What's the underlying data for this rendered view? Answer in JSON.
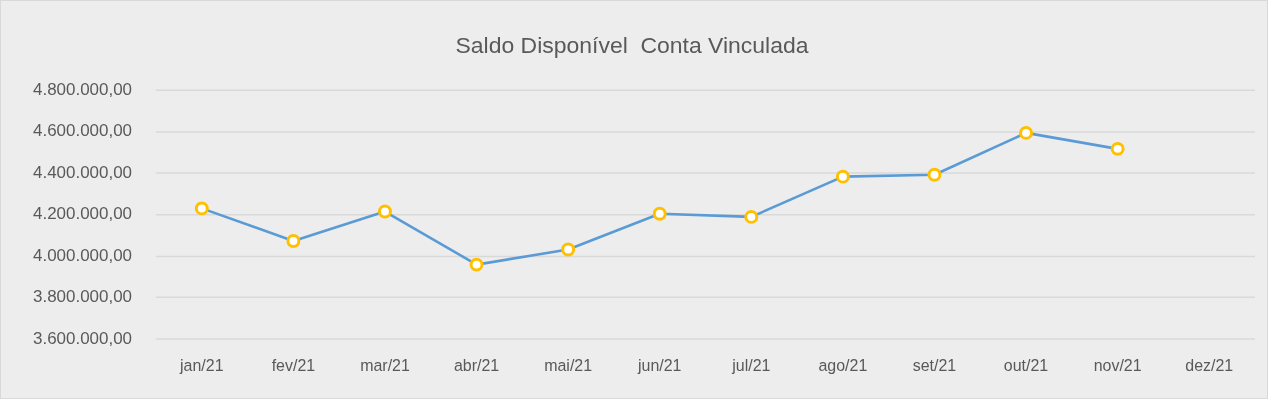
{
  "chart_data": {
    "type": "line",
    "title": "Saldo Disponível  Conta Vinculada",
    "categories": [
      "jan/21",
      "fev/21",
      "mar/21",
      "abr/21",
      "mai/21",
      "jun/21",
      "jul/21",
      "ago/21",
      "set/21",
      "out/21",
      "nov/21",
      "dez/21"
    ],
    "series": [
      {
        "color": "#5b9bd5",
        "values": [
          4230000,
          4073000,
          4215000,
          3959000,
          4032000,
          4204000,
          4189000,
          4383000,
          4392000,
          4594000,
          4517000,
          null
        ]
      }
    ],
    "marker": "circle",
    "line_style": "solid",
    "ylim": [
      3600000,
      4800000
    ],
    "yticks": [
      {
        "value": 3600000,
        "label": "3.600.000,00"
      },
      {
        "value": 3800000,
        "label": "3.800.000,00"
      },
      {
        "value": 4000000,
        "label": "4.000.000,00"
      },
      {
        "value": 4200000,
        "label": "4.200.000,00"
      },
      {
        "value": 4400000,
        "label": "4.400.000,00"
      },
      {
        "value": 4600000,
        "label": "4.600.000,00"
      },
      {
        "value": 4800000,
        "label": "4.800.000,00"
      }
    ],
    "grid": "y",
    "legend": false
  }
}
